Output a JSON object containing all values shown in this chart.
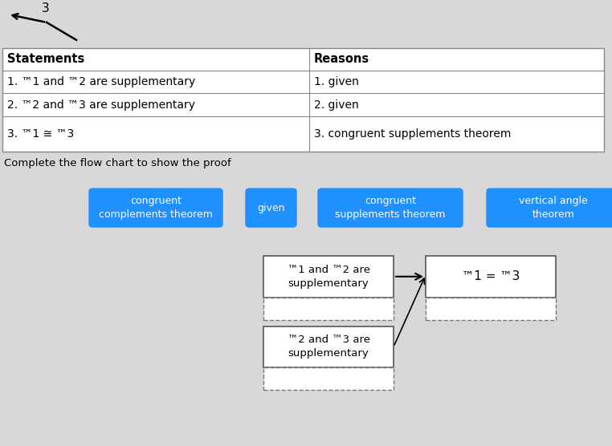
{
  "bg_color": "#d8d8d8",
  "table_bg": "#ffffff",
  "table_border_color": "#000000",
  "title_text": "Statements",
  "reasons_text": "Reasons",
  "rows": [
    [
      "1. ™1 and ™2 are supplementary",
      "1. given"
    ],
    [
      "2. ™2 and ™3 are supplementary",
      "2. given"
    ],
    [
      "3. ™1 ≅ ™3",
      "3. congruent supplements theorem"
    ]
  ],
  "caption": "Complete the flow chart to show the proof",
  "button_color": "#1e90ff",
  "button_text_color": "#ffffff",
  "buttons": [
    "congruent\ncomplements theorem",
    "given",
    "congruent\nsupplements theorem",
    "vertical angle\ntheorem"
  ],
  "box1_text": "™1 and ™2 are\nsupplementary",
  "box3_text": "™2 and ™3 are\nsupplementary",
  "box_result_text": "™1 = ™3",
  "dpi": 100,
  "figsize": [
    7.62,
    5.56
  ]
}
